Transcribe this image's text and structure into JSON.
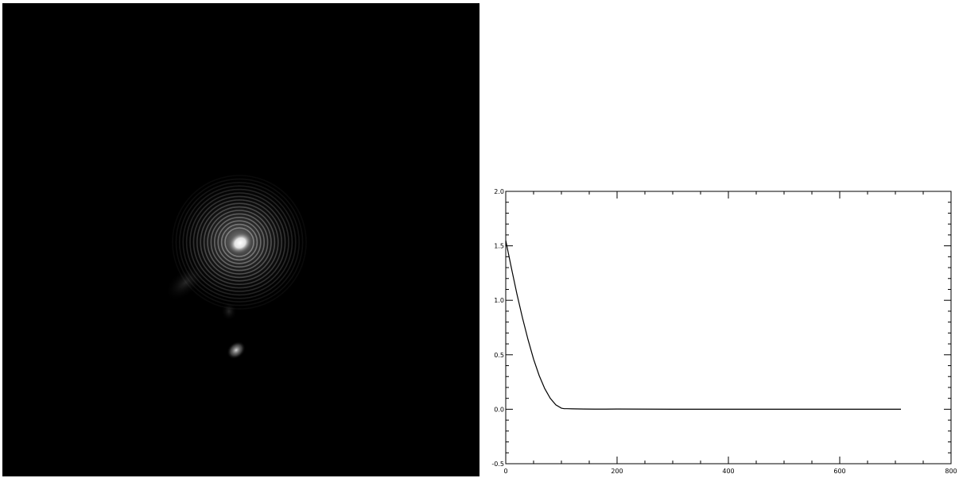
{
  "image_view": {
    "background_color": "#000000",
    "ring_color": "#bfbfbf",
    "core_color": "#ffffff"
  },
  "chart_data": {
    "type": "line",
    "title": "",
    "xlabel": "",
    "ylabel": "",
    "xlim": [
      0,
      800
    ],
    "ylim": [
      -0.5,
      2.0
    ],
    "grid": false,
    "legend": "none",
    "x_ticks": [
      0,
      200,
      400,
      600,
      800
    ],
    "x_tick_labels": [
      "0",
      "200",
      "400",
      "600",
      "800"
    ],
    "y_ticks": [
      -0.5,
      0.0,
      0.5,
      1.0,
      1.5,
      2.0
    ],
    "y_tick_labels": [
      "-0.5",
      "0.0",
      "0.5",
      "1.0",
      "1.5",
      "2.0"
    ],
    "line_color": "#000000",
    "axis_color": "#000000",
    "series": [
      {
        "x": [
          0,
          10,
          20,
          30,
          40,
          50,
          60,
          70,
          80,
          90,
          100,
          105,
          110,
          120,
          140,
          160,
          180,
          200,
          300,
          400,
          500,
          600,
          700,
          710
        ],
        "y": [
          1.55,
          1.3,
          1.06,
          0.84,
          0.64,
          0.46,
          0.31,
          0.19,
          0.1,
          0.04,
          0.01,
          0.005,
          0.005,
          0.004,
          0.002,
          0.001,
          0.001,
          0.002,
          0.0,
          0.0,
          0.0,
          0.0,
          0.0,
          0.0
        ]
      }
    ]
  }
}
